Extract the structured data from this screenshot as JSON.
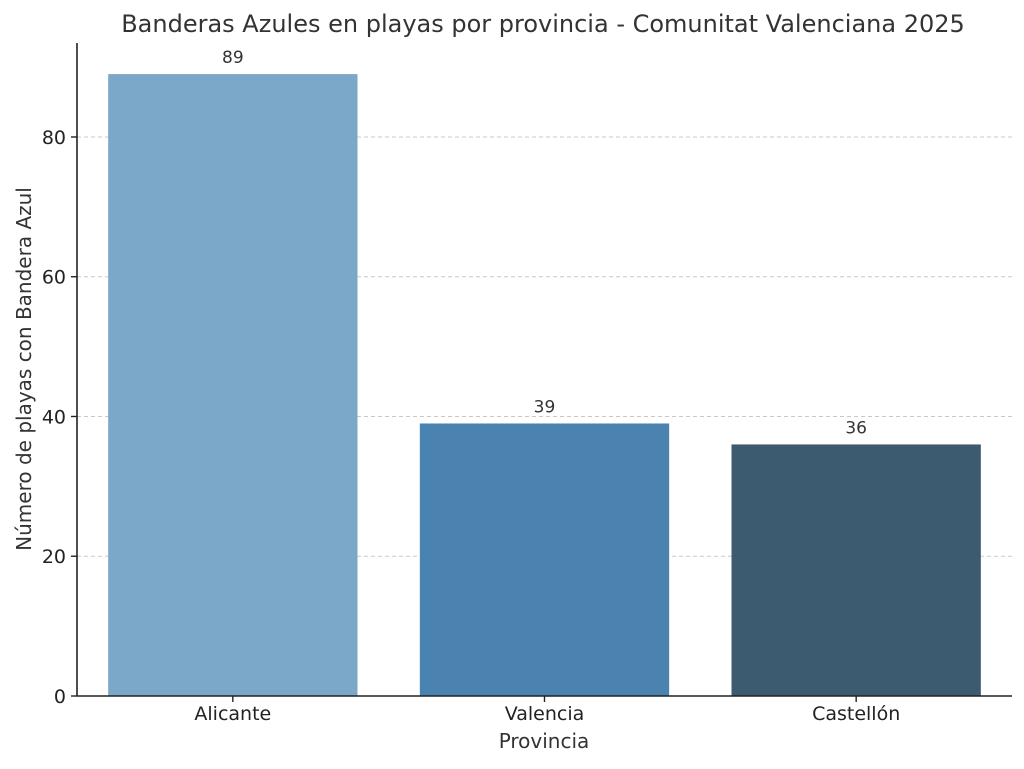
{
  "chart_data": {
    "type": "bar",
    "title": "Banderas Azules en playas por provincia - Comunitat Valenciana 2025",
    "xlabel": "Provincia",
    "ylabel": "Número de playas con Bandera Azul",
    "categories": [
      "Alicante",
      "Valencia",
      "Castellón"
    ],
    "values": [
      89,
      39,
      36
    ],
    "data_labels": [
      "89",
      "39",
      "36"
    ],
    "colors": [
      "#7ba7c8",
      "#4a83b0",
      "#3d5b70"
    ],
    "ylim": [
      0,
      93.45
    ],
    "yticks": [
      0,
      20,
      40,
      60,
      80
    ],
    "grid": "horizontal dashed",
    "legend": "none"
  }
}
